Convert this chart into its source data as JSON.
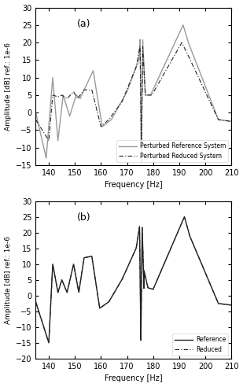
{
  "xlim": [
    135,
    210
  ],
  "ylim_a": [
    -15,
    30
  ],
  "ylim_b": [
    -20,
    30
  ],
  "xticks": [
    140,
    150,
    160,
    170,
    180,
    190,
    200,
    210
  ],
  "yticks_a": [
    -15,
    -10,
    -5,
    0,
    5,
    10,
    15,
    20,
    25,
    30
  ],
  "yticks_b": [
    -20,
    -15,
    -10,
    -5,
    0,
    5,
    10,
    15,
    20,
    25,
    30
  ],
  "xlabel": "Frequency [Hz]",
  "ylabel": "Amplitude [dB] ref.: 1e-6",
  "label_a_ref": "Perturbed Reference System",
  "label_a_red": "Perturbed Reduced System",
  "label_b_ref": "Reference",
  "label_b_red": "Reduced",
  "panel_a": "(a)",
  "panel_b": "(b)",
  "line_color_ref_a": "#999999",
  "line_color_red_a": "#222222",
  "line_color_ref_b": "#222222",
  "line_color_red_b": "#222222"
}
